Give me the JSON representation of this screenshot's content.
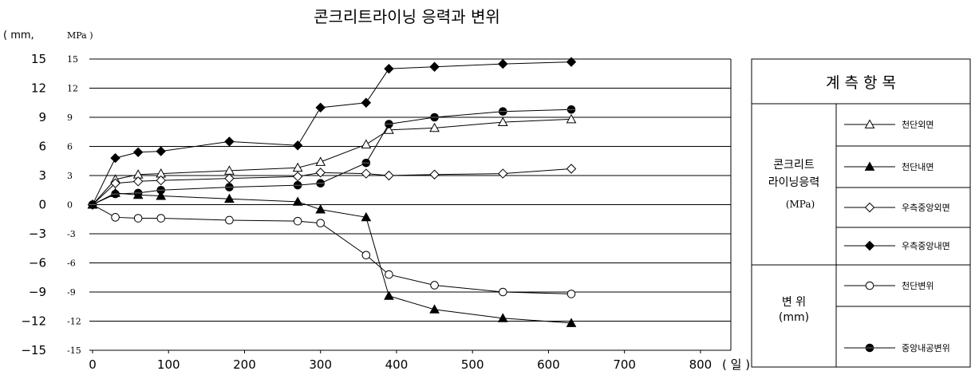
{
  "chart_data": {
    "type": "line",
    "title": "콘크리트라이닝 응력과 변위",
    "y_unit_left": "( mm,",
    "y_unit_right": "MPa )",
    "x_unit": "( 일 )",
    "xlim": [
      0,
      840
    ],
    "ylim": [
      -15,
      15
    ],
    "x_ticks": [
      0,
      100,
      200,
      300,
      400,
      500,
      600,
      700,
      800
    ],
    "x_tick_labels": [
      "0",
      "100",
      "200",
      "300",
      "400",
      "500",
      "600",
      "700",
      "800"
    ],
    "y_ticks": [
      15,
      12,
      9,
      6,
      3,
      0,
      -3,
      -6,
      -9,
      -12,
      -15
    ],
    "y_tick_labels_left": [
      "15",
      "12",
      "9",
      "6",
      "3",
      "0",
      "−3",
      "−6",
      "−9",
      "−12",
      "−15"
    ],
    "y_tick_labels_right": [
      "15",
      "12",
      "9",
      "6",
      "3",
      "0",
      "-3",
      "-6",
      "-9",
      "-12",
      "-15"
    ],
    "grid": "horizontal",
    "series": [
      {
        "name": "천단외면",
        "marker": "triangle-open",
        "x": [
          0,
          30,
          60,
          90,
          180,
          270,
          300,
          360,
          390,
          450,
          540,
          630
        ],
        "y": [
          0,
          2.6,
          3.1,
          3.2,
          3.5,
          3.8,
          4.4,
          6.2,
          7.7,
          7.9,
          8.5,
          8.8
        ]
      },
      {
        "name": "천단내면",
        "marker": "triangle-filled",
        "x": [
          0,
          30,
          60,
          90,
          180,
          270,
          300,
          360,
          390,
          450,
          540,
          630
        ],
        "y": [
          0,
          1.2,
          1.0,
          0.9,
          0.6,
          0.3,
          -0.5,
          -1.3,
          -9.4,
          -10.8,
          -11.7,
          -12.2
        ]
      },
      {
        "name": "우측중앙외면",
        "marker": "diamond-open",
        "x": [
          0,
          30,
          60,
          90,
          180,
          270,
          300,
          360,
          390,
          450,
          540,
          630
        ],
        "y": [
          0,
          2.2,
          2.4,
          2.5,
          2.7,
          2.9,
          3.3,
          3.2,
          3.0,
          3.1,
          3.2,
          3.7
        ]
      },
      {
        "name": "우측중앙내면",
        "marker": "diamond-filled",
        "x": [
          0,
          30,
          60,
          90,
          180,
          270,
          300,
          360,
          390,
          450,
          540,
          630
        ],
        "y": [
          0,
          4.8,
          5.4,
          5.5,
          6.5,
          6.1,
          10.0,
          10.5,
          14.0,
          14.2,
          14.5,
          14.7
        ]
      },
      {
        "name": "천단변위",
        "marker": "circle-open",
        "x": [
          0,
          30,
          60,
          90,
          180,
          270,
          300,
          360,
          390,
          450,
          540,
          630
        ],
        "y": [
          0,
          -1.3,
          -1.4,
          -1.4,
          -1.6,
          -1.7,
          -1.9,
          -5.2,
          -7.2,
          -8.3,
          -9.0,
          -9.2
        ]
      },
      {
        "name": "중앙내공변위",
        "marker": "circle-filled",
        "x": [
          0,
          30,
          60,
          90,
          180,
          270,
          300,
          360,
          390,
          450,
          540,
          630
        ],
        "y": [
          0,
          1.1,
          1.2,
          1.5,
          1.8,
          2.0,
          2.2,
          4.3,
          8.3,
          9.0,
          9.6,
          9.8
        ]
      }
    ]
  },
  "legend": {
    "header": "계 측 항 목",
    "groups": [
      {
        "label_lines": [
          "콘크리트",
          "라이닝응력"
        ],
        "unit": "(MPa)",
        "series": [
          0,
          1,
          2,
          3
        ]
      },
      {
        "label_lines": [
          "변  위"
        ],
        "unit": "(mm)",
        "series": [
          4,
          5
        ]
      }
    ]
  }
}
